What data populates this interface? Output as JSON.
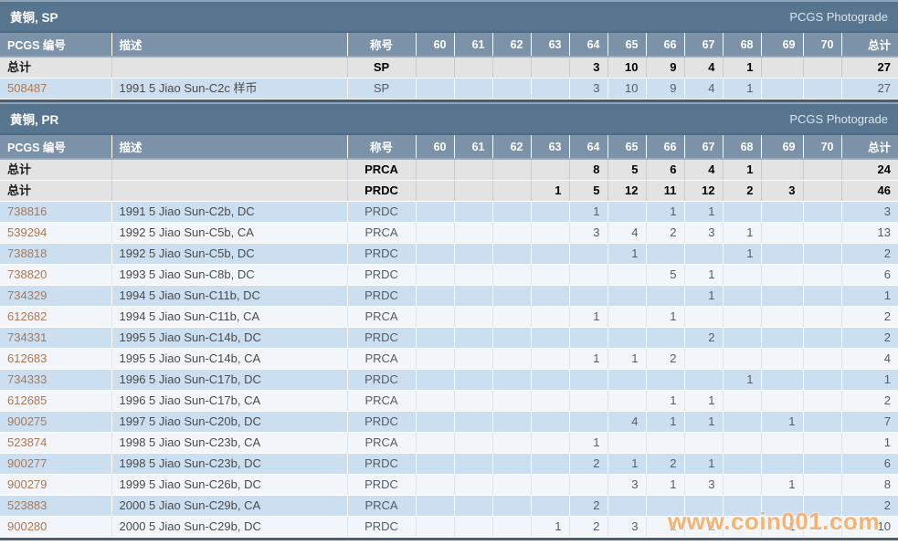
{
  "columns": {
    "id": "PCGS 编号",
    "desc": "描述",
    "designation": "称号",
    "grades": [
      "60",
      "61",
      "62",
      "63",
      "64",
      "65",
      "66",
      "67",
      "68",
      "69",
      "70"
    ],
    "total": "总计"
  },
  "watermark": "www.coin001.com",
  "colors": {
    "section_bar": "#587590",
    "header_row": "#7b92a9",
    "total_row_bg": "#e3e3e3",
    "row_blue": "#cbdff1",
    "row_light": "#f2f6fa",
    "pcgs_number": "#ad7853",
    "watermark_orange": "#f4a65c"
  },
  "sections": [
    {
      "title": "黄铜, SP",
      "badge": "PCGS Photograde",
      "totals": [
        {
          "label": "总计",
          "designation": "SP",
          "values": [
            "",
            "",
            "",
            "",
            "3",
            "10",
            "9",
            "4",
            "1",
            "",
            ""
          ],
          "total": "27"
        }
      ],
      "rows": [
        {
          "id": "508487",
          "desc": "1991 5 Jiao Sun-C2c 样币",
          "designation": "SP",
          "values": [
            "",
            "",
            "",
            "",
            "3",
            "10",
            "9",
            "4",
            "1",
            "",
            ""
          ],
          "total": "27"
        }
      ]
    },
    {
      "title": "黄铜, PR",
      "badge": "PCGS Photograde",
      "totals": [
        {
          "label": "总计",
          "designation": "PRCA",
          "values": [
            "",
            "",
            "",
            "",
            "8",
            "5",
            "6",
            "4",
            "1",
            "",
            ""
          ],
          "total": "24"
        },
        {
          "label": "总计",
          "designation": "PRDC",
          "values": [
            "",
            "",
            "",
            "1",
            "5",
            "12",
            "11",
            "12",
            "2",
            "3",
            ""
          ],
          "total": "46"
        }
      ],
      "rows": [
        {
          "id": "738816",
          "desc": "1991 5 Jiao Sun-C2b, DC",
          "designation": "PRDC",
          "values": [
            "",
            "",
            "",
            "",
            "1",
            "",
            "1",
            "1",
            "",
            "",
            ""
          ],
          "total": "3"
        },
        {
          "id": "539294",
          "desc": "1992 5 Jiao Sun-C5b, CA",
          "designation": "PRCA",
          "values": [
            "",
            "",
            "",
            "",
            "3",
            "4",
            "2",
            "3",
            "1",
            "",
            ""
          ],
          "total": "13"
        },
        {
          "id": "738818",
          "desc": "1992 5 Jiao Sun-C5b, DC",
          "designation": "PRDC",
          "values": [
            "",
            "",
            "",
            "",
            "",
            "1",
            "",
            "",
            "1",
            "",
            ""
          ],
          "total": "2"
        },
        {
          "id": "738820",
          "desc": "1993 5 Jiao Sun-C8b, DC",
          "designation": "PRDC",
          "values": [
            "",
            "",
            "",
            "",
            "",
            "",
            "5",
            "1",
            "",
            "",
            ""
          ],
          "total": "6"
        },
        {
          "id": "734329",
          "desc": "1994 5 Jiao Sun-C11b, DC",
          "designation": "PRDC",
          "values": [
            "",
            "",
            "",
            "",
            "",
            "",
            "",
            "1",
            "",
            "",
            ""
          ],
          "total": "1"
        },
        {
          "id": "612682",
          "desc": "1994 5 Jiao Sun-C11b, CA",
          "designation": "PRCA",
          "values": [
            "",
            "",
            "",
            "",
            "1",
            "",
            "1",
            "",
            "",
            "",
            ""
          ],
          "total": "2"
        },
        {
          "id": "734331",
          "desc": "1995 5 Jiao Sun-C14b, DC",
          "designation": "PRDC",
          "values": [
            "",
            "",
            "",
            "",
            "",
            "",
            "",
            "2",
            "",
            "",
            ""
          ],
          "total": "2"
        },
        {
          "id": "612683",
          "desc": "1995 5 Jiao Sun-C14b, CA",
          "designation": "PRCA",
          "values": [
            "",
            "",
            "",
            "",
            "1",
            "1",
            "2",
            "",
            "",
            "",
            ""
          ],
          "total": "4"
        },
        {
          "id": "734333",
          "desc": "1996 5 Jiao Sun-C17b, DC",
          "designation": "PRDC",
          "values": [
            "",
            "",
            "",
            "",
            "",
            "",
            "",
            "",
            "1",
            "",
            ""
          ],
          "total": "1"
        },
        {
          "id": "612685",
          "desc": "1996 5 Jiao Sun-C17b, CA",
          "designation": "PRCA",
          "values": [
            "",
            "",
            "",
            "",
            "",
            "",
            "1",
            "1",
            "",
            "",
            ""
          ],
          "total": "2"
        },
        {
          "id": "900275",
          "desc": "1997 5 Jiao Sun-C20b, DC",
          "designation": "PRDC",
          "values": [
            "",
            "",
            "",
            "",
            "",
            "4",
            "1",
            "1",
            "",
            "1",
            ""
          ],
          "total": "7"
        },
        {
          "id": "523874",
          "desc": "1998 5 Jiao Sun-C23b, CA",
          "designation": "PRCA",
          "values": [
            "",
            "",
            "",
            "",
            "1",
            "",
            "",
            "",
            "",
            "",
            ""
          ],
          "total": "1"
        },
        {
          "id": "900277",
          "desc": "1998 5 Jiao Sun-C23b, DC",
          "designation": "PRDC",
          "values": [
            "",
            "",
            "",
            "",
            "2",
            "1",
            "2",
            "1",
            "",
            "",
            ""
          ],
          "total": "6"
        },
        {
          "id": "900279",
          "desc": "1999 5 Jiao Sun-C26b, DC",
          "designation": "PRDC",
          "values": [
            "",
            "",
            "",
            "",
            "",
            "3",
            "1",
            "3",
            "",
            "1",
            ""
          ],
          "total": "8"
        },
        {
          "id": "523883",
          "desc": "2000 5 Jiao Sun-C29b, CA",
          "designation": "PRCA",
          "values": [
            "",
            "",
            "",
            "",
            "2",
            "",
            "",
            "",
            "",
            "",
            ""
          ],
          "total": "2"
        },
        {
          "id": "900280",
          "desc": "2000 5 Jiao Sun-C29b, DC",
          "designation": "PRDC",
          "values": [
            "",
            "",
            "",
            "1",
            "2",
            "3",
            "1",
            "2",
            "",
            "1",
            ""
          ],
          "total": "10"
        }
      ]
    }
  ]
}
